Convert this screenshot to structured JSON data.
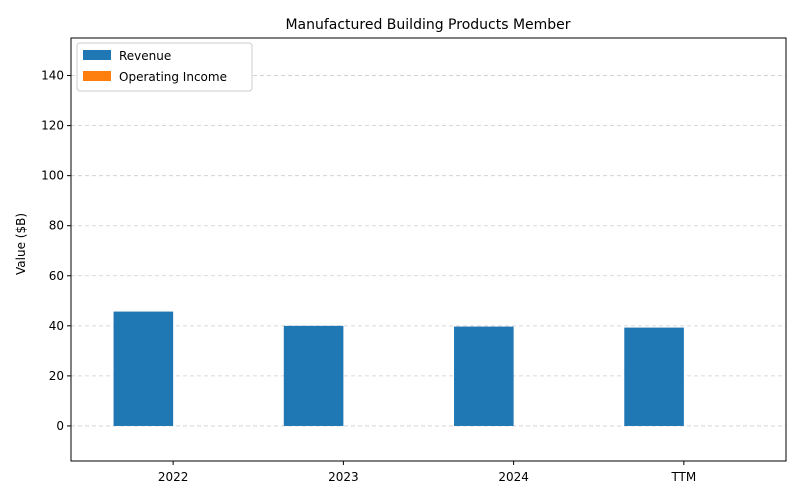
{
  "chart_data": {
    "type": "bar",
    "title": "Manufactured Building Products Member",
    "xlabel": "",
    "ylabel": "Value ($B)",
    "categories": [
      "2022",
      "2023",
      "2024",
      "TTM"
    ],
    "series": [
      {
        "name": "Revenue",
        "values": [
          45.7,
          40.0,
          39.7,
          39.3
        ],
        "color": "#1f77b4"
      },
      {
        "name": "Operating Income",
        "values": [
          0,
          0,
          0,
          0
        ],
        "color": "#ff7f0e"
      }
    ],
    "ylim": [
      -14,
      155
    ],
    "yticks": [
      0,
      20,
      40,
      60,
      80,
      100,
      120,
      140
    ],
    "grid": "y-dashed",
    "legend_position": "top-left"
  }
}
